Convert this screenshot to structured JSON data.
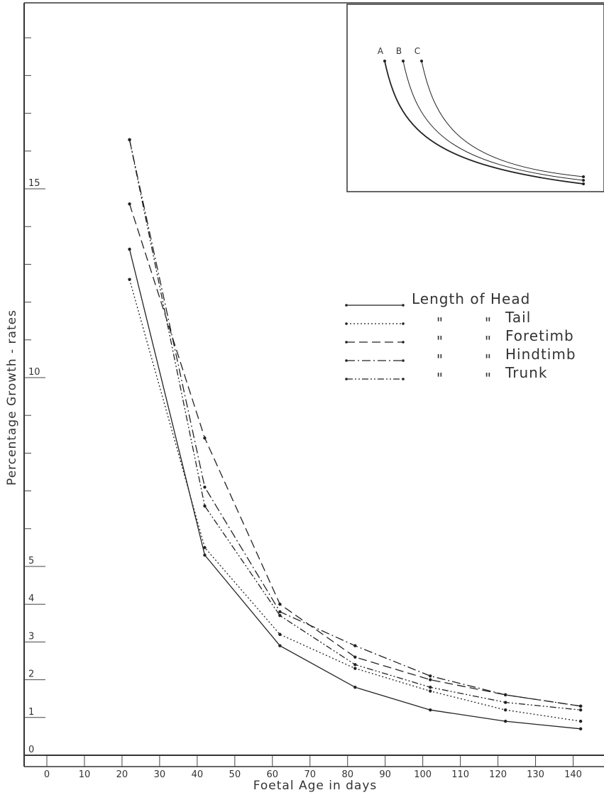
{
  "chart_data": {
    "type": "line",
    "xlabel": "Foetal Age in days",
    "ylabel": "Percentage Growth - rates",
    "xlim": [
      0,
      145
    ],
    "ylim": [
      0,
      20
    ],
    "xticks": [
      "0",
      "10",
      "20",
      "30",
      "40",
      "50",
      "60",
      "70",
      "80",
      "90",
      "100",
      "110",
      "120",
      "130",
      "140"
    ],
    "yticks": [
      {
        "v": 0,
        "label": "0"
      },
      {
        "v": 1,
        "label": "1"
      },
      {
        "v": 2,
        "label": "2"
      },
      {
        "v": 3,
        "label": "3"
      },
      {
        "v": 4,
        "label": "4"
      },
      {
        "v": 5,
        "label": "5"
      },
      {
        "v": 10,
        "label": "10"
      },
      {
        "v": 15,
        "label": "15"
      }
    ],
    "yminor": [
      6,
      7,
      8,
      9,
      11,
      12,
      13,
      14,
      16,
      17,
      18,
      19
    ],
    "x": [
      22,
      42,
      62,
      82,
      102,
      122,
      142
    ],
    "series": [
      {
        "name": "Length of Head",
        "dash": "",
        "values": [
          13.4,
          5.3,
          2.9,
          1.8,
          1.2,
          0.9,
          0.7
        ]
      },
      {
        "name": "Tail",
        "dash": "2,3",
        "values": [
          12.6,
          5.5,
          3.2,
          2.3,
          1.7,
          1.2,
          0.9
        ]
      },
      {
        "name": "Foretimb",
        "dash": "12,6",
        "values": [
          14.6,
          8.4,
          4.0,
          2.6,
          2.0,
          1.6,
          1.3
        ]
      },
      {
        "name": "Hindtimb",
        "dash": "12,4,2,4",
        "values": [
          16.3,
          7.1,
          3.8,
          2.9,
          2.1,
          1.6,
          1.3
        ]
      },
      {
        "name": "Trunk",
        "dash": "9,3,2,3,2,3",
        "values": [
          16.3,
          6.6,
          3.7,
          2.4,
          1.8,
          1.4,
          1.2
        ]
      }
    ],
    "legend": [
      {
        "key": "Length of Head",
        "label": "Length  of  Head",
        "dash": ""
      },
      {
        "key": "Tail",
        "label": "Tail",
        "dash": "2,3"
      },
      {
        "key": "Foretimb",
        "label": "Foretimb",
        "dash": "12,6"
      },
      {
        "key": "Hindtimb",
        "label": "Hindtimb",
        "dash": "12,4,2,4"
      },
      {
        "key": "Trunk",
        "label": "Trunk",
        "dash": "9,3,2,3,2,3"
      }
    ],
    "ditto_mark": "\"",
    "inset": {
      "curves": [
        {
          "label": "A"
        },
        {
          "label": "B"
        },
        {
          "label": "C"
        }
      ]
    }
  }
}
